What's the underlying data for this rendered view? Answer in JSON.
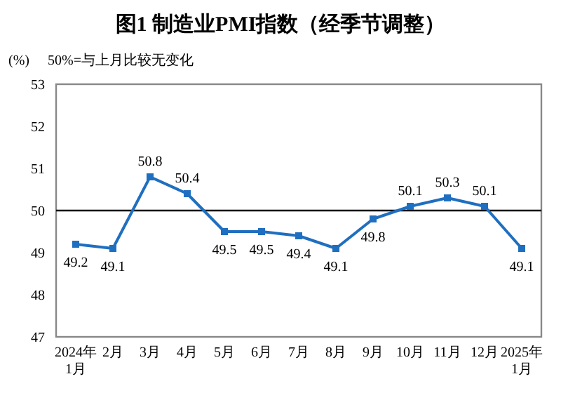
{
  "chart_data": {
    "type": "line",
    "title": "图1  制造业PMI指数（经季节调整）",
    "ylabel": "(%)",
    "annotations": [
      "50%=与上月比较无变化"
    ],
    "categories": [
      "2024年\n1月",
      "2月",
      "3月",
      "4月",
      "5月",
      "6月",
      "7月",
      "8月",
      "9月",
      "10月",
      "11月",
      "12月",
      "2025年\n1月"
    ],
    "series": [
      {
        "color": "#1f6fc0",
        "values": [
          49.2,
          49.1,
          50.8,
          50.4,
          49.5,
          49.5,
          49.4,
          49.1,
          49.8,
          50.1,
          50.3,
          50.1,
          49.1
        ]
      }
    ],
    "ylim": [
      47,
      53
    ],
    "yticks": [
      47,
      48,
      49,
      50,
      51,
      52,
      53
    ],
    "ref_lines": [
      {
        "axis": "y",
        "value": 50,
        "color": "#000000"
      }
    ],
    "data_labels": true,
    "marker": "square",
    "line_style": "solid"
  }
}
